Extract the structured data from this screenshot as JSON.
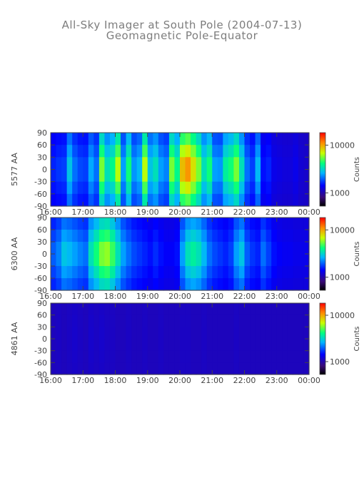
{
  "title": "All-Sky Imager at South Pole (2004-07-13)",
  "subtitle": "Geomagnetic Pole-Equator",
  "chart_data": [
    {
      "type": "heatmap",
      "ylabel": "5577 AA",
      "x_ticks": [
        "16:00",
        "17:00",
        "18:00",
        "19:00",
        "20:00",
        "21:00",
        "22:00",
        "23:00",
        "00:00"
      ],
      "xlim": [
        "16:00",
        "00:00"
      ],
      "y_ticks": [
        90,
        60,
        30,
        0,
        -30,
        -60,
        -90
      ],
      "ylim": [
        -90,
        90
      ],
      "colorbar": {
        "label": "Counts",
        "scale": "log",
        "tick_labels": [
          "10000",
          "1000"
        ]
      },
      "intensity_profile": [
        0.32,
        0.34,
        0.35,
        0.5,
        0.4,
        0.36,
        0.35,
        0.46,
        0.4,
        0.7,
        0.55,
        0.6,
        0.75,
        0.45,
        0.62,
        0.44,
        0.48,
        0.75,
        0.5,
        0.55,
        0.45,
        0.42,
        0.7,
        0.6,
        0.85,
        0.9,
        0.8,
        0.7,
        0.55,
        0.62,
        0.45,
        0.44,
        0.58,
        0.62,
        0.7,
        0.55,
        0.4,
        0.35,
        0.48,
        0.3,
        0.32,
        0.26,
        0.25,
        0.24,
        0.24,
        0.26,
        0.23,
        0.22
      ]
    },
    {
      "type": "heatmap",
      "ylabel": "6300 AA",
      "x_ticks": [
        "16:00",
        "17:00",
        "18:00",
        "19:00",
        "20:00",
        "21:00",
        "22:00",
        "23:00",
        "00:00"
      ],
      "xlim": [
        "16:00",
        "00:00"
      ],
      "y_ticks": [
        90,
        60,
        30,
        0,
        -30,
        -60,
        -90
      ],
      "ylim": [
        -90,
        90
      ],
      "colorbar": {
        "label": "Counts",
        "scale": "log",
        "tick_labels": [
          "10000",
          "1000"
        ]
      },
      "intensity_profile": [
        0.38,
        0.42,
        0.5,
        0.48,
        0.45,
        0.42,
        0.4,
        0.55,
        0.62,
        0.7,
        0.72,
        0.65,
        0.55,
        0.45,
        0.4,
        0.36,
        0.34,
        0.32,
        0.3,
        0.33,
        0.3,
        0.28,
        0.28,
        0.3,
        0.45,
        0.55,
        0.58,
        0.55,
        0.48,
        0.4,
        0.36,
        0.34,
        0.32,
        0.35,
        0.45,
        0.5,
        0.38,
        0.34,
        0.32,
        0.4,
        0.35,
        0.3,
        0.28,
        0.27,
        0.27,
        0.26,
        0.26,
        0.26
      ]
    },
    {
      "type": "heatmap",
      "ylabel": "4861 AA",
      "x_ticks": [
        "16:00",
        "17:00",
        "18:00",
        "19:00",
        "20:00",
        "21:00",
        "22:00",
        "23:00",
        "00:00"
      ],
      "xlim": [
        "16:00",
        "00:00"
      ],
      "y_ticks": [
        90,
        60,
        30,
        0,
        -30,
        -60,
        -90
      ],
      "ylim": [
        -90,
        90
      ],
      "colorbar": {
        "label": "Counts",
        "scale": "log",
        "tick_labels": [
          "10000",
          "1000"
        ]
      },
      "intensity_profile": [
        0.2,
        0.21,
        0.2,
        0.21,
        0.22,
        0.21,
        0.2,
        0.22,
        0.21,
        0.22,
        0.21,
        0.21,
        0.2,
        0.2,
        0.21,
        0.2,
        0.2,
        0.21,
        0.2,
        0.2,
        0.21,
        0.2,
        0.2,
        0.2,
        0.21,
        0.21,
        0.2,
        0.2,
        0.21,
        0.2,
        0.2,
        0.2,
        0.2,
        0.2,
        0.21,
        0.2,
        0.2,
        0.2,
        0.2,
        0.2,
        0.2,
        0.2,
        0.2,
        0.2,
        0.2,
        0.2,
        0.2,
        0.2
      ]
    }
  ]
}
